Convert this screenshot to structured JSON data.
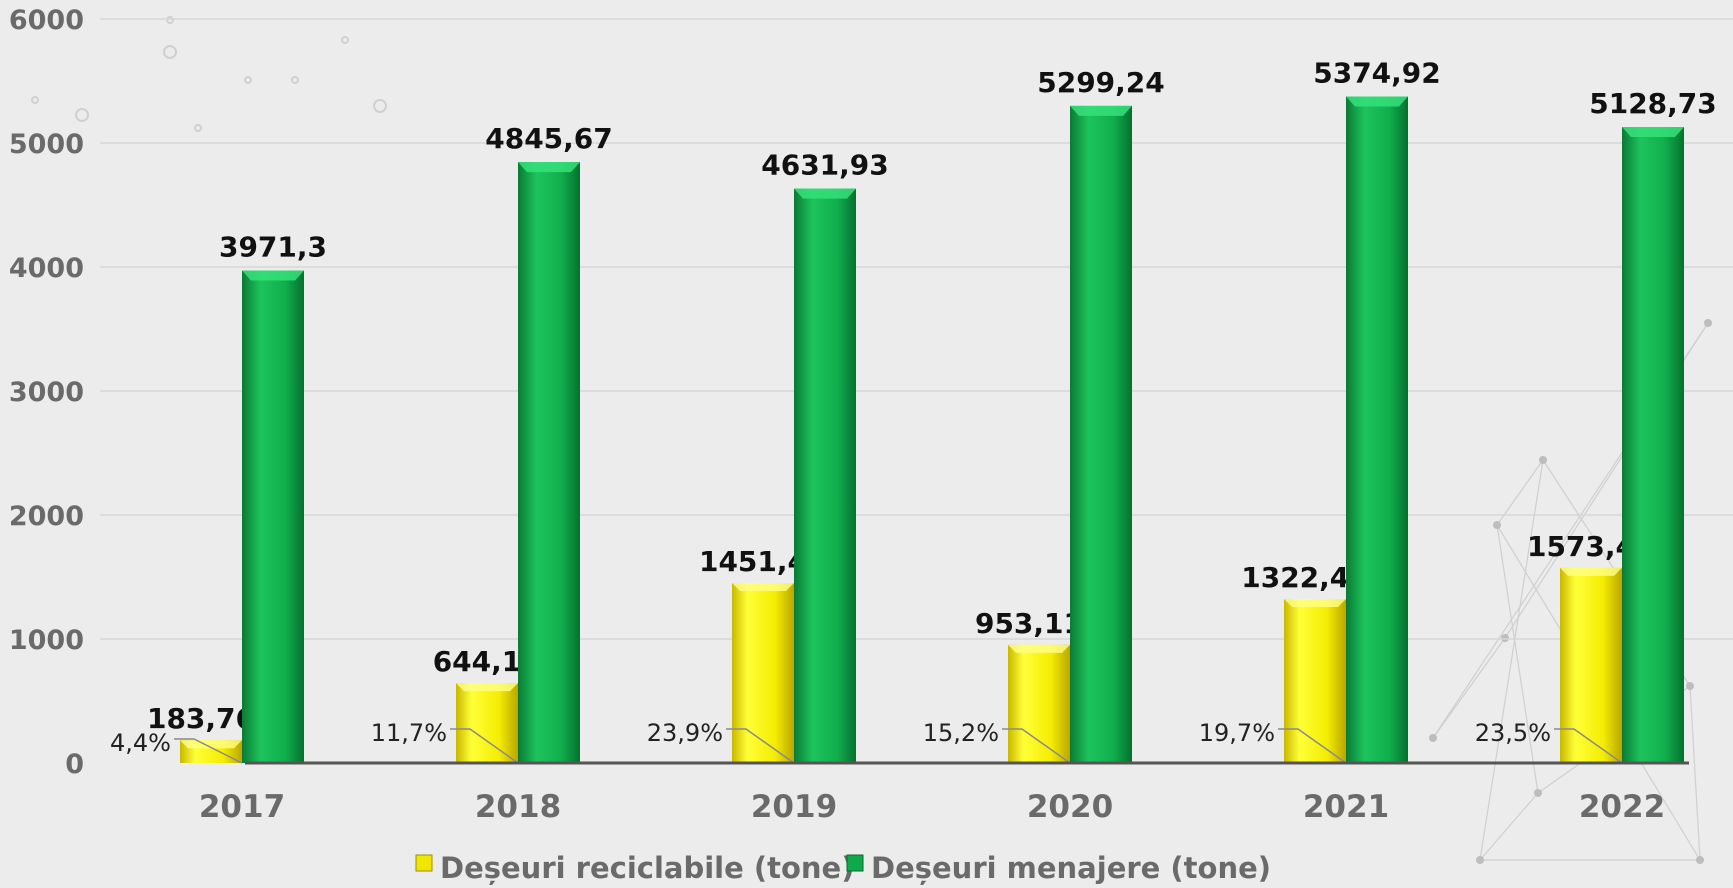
{
  "chart_data": {
    "type": "bar",
    "title": "",
    "xlabel": "",
    "ylabel": "",
    "ylim": [
      0,
      6000
    ],
    "yticks": [
      "0",
      "1000",
      "2000",
      "3000",
      "4000",
      "5000",
      "6000"
    ],
    "grid": true,
    "legend_position": "bottom",
    "categories": [
      "2017",
      "2018",
      "2019",
      "2020",
      "2021",
      "2022"
    ],
    "series": [
      {
        "name": "Deșeuri reciclabile (tone)",
        "values": [
          183.76,
          644.1,
          1451.4,
          953.11,
          1322.42,
          1573.4
        ],
        "labels": [
          "183,76",
          "644,1",
          "1451,4",
          "953,11",
          "1322,42",
          "1573,4"
        ],
        "color": "#f2e600"
      },
      {
        "name": "Deșeuri menajere (tone)",
        "values": [
          3971.3,
          4845.67,
          4631.93,
          5299.24,
          5374.92,
          5128.73
        ],
        "labels": [
          "3971,3",
          "4845,67",
          "4631,93",
          "5299,24",
          "5374,92",
          "5128,73"
        ],
        "color": "#10a84a"
      }
    ],
    "percent_labels": [
      "4,4%",
      "11,7%",
      "23,9%",
      "15,2%",
      "19,7%",
      "23,5%"
    ]
  }
}
